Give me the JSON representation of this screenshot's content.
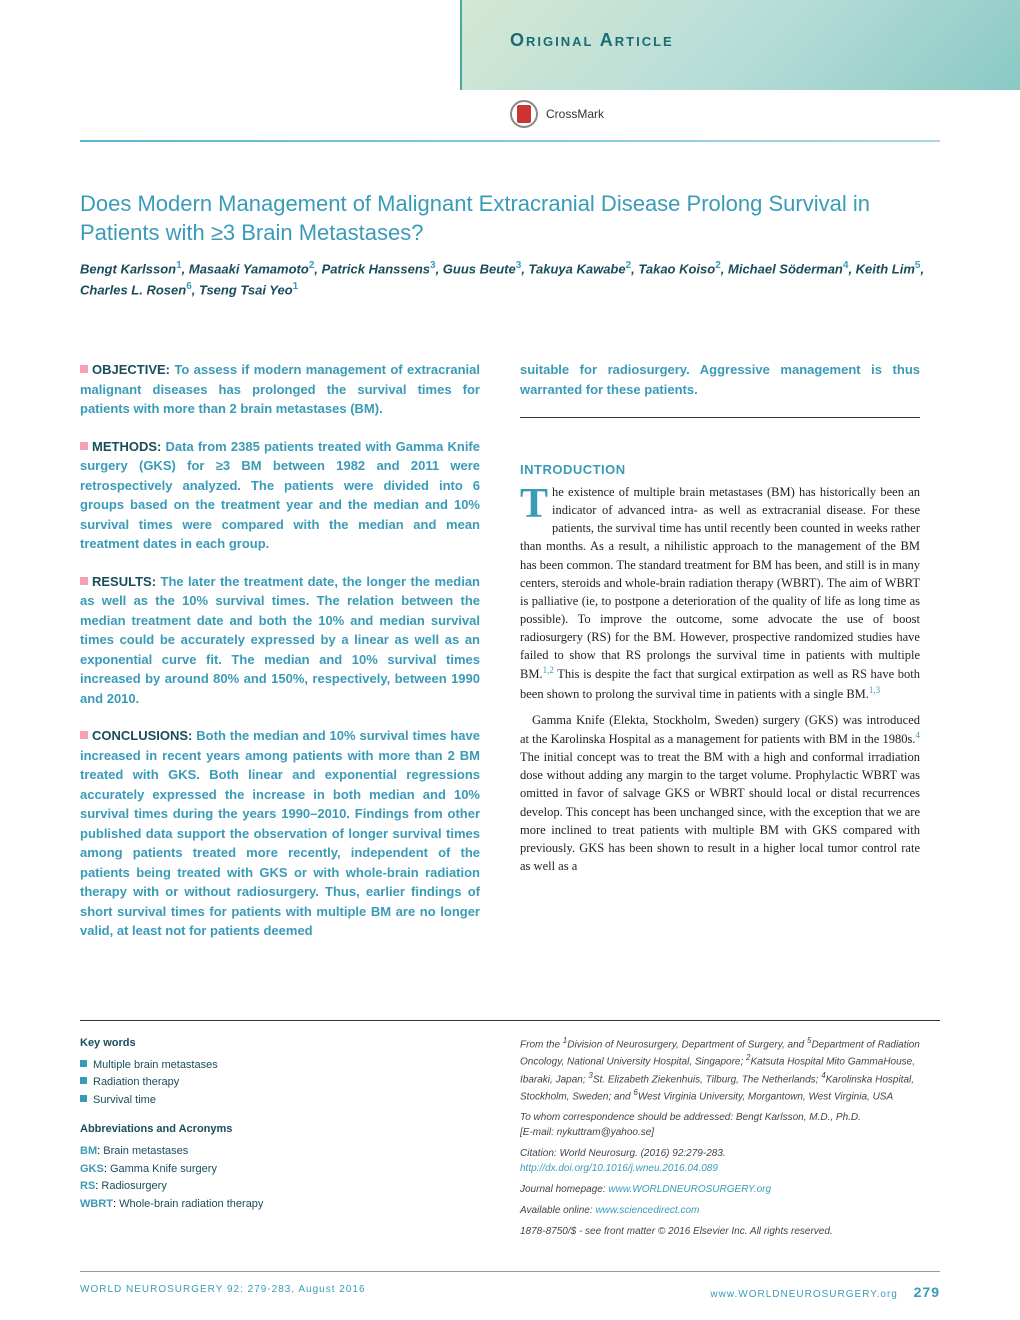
{
  "header": {
    "section_label": "Original Article",
    "crossmark": "CrossMark"
  },
  "title": "Does Modern Management of Malignant Extracranial Disease Prolong Survival in Patients with ≥3 Brain Metastases?",
  "authors_html": "Bengt Karlsson<sup>1</sup>, Masaaki Yamamoto<sup>2</sup>, Patrick Hanssens<sup>3</sup>, Guus Beute<sup>3</sup>, Takuya Kawabe<sup>2</sup>, Takao Koiso<sup>2</sup>, Michael Söderman<sup>4</sup>, Keith Lim<sup>5</sup>, Charles L. Rosen<sup>6</sup>, Tseng Tsai Yeo<sup>1</sup>",
  "abstract": {
    "objective": {
      "label": "OBJECTIVE:",
      "text": "To assess if modern management of extracranial malignant diseases has prolonged the survival times for patients with more than 2 brain metastases (BM)."
    },
    "methods": {
      "label": "METHODS:",
      "text": "Data from 2385 patients treated with Gamma Knife surgery (GKS) for ≥3 BM between 1982 and 2011 were retrospectively analyzed. The patients were divided into 6 groups based on the treatment year and the median and 10% survival times were compared with the median and mean treatment dates in each group."
    },
    "results": {
      "label": "RESULTS:",
      "text": "The later the treatment date, the longer the median as well as the 10% survival times. The relation between the median treatment date and both the 10% and median survival times could be accurately expressed by a linear as well as an exponential curve fit. The median and 10% survival times increased by around 80% and 150%, respectively, between 1990 and 2010."
    },
    "conclusions": {
      "label": "CONCLUSIONS:",
      "text": "Both the median and 10% survival times have increased in recent years among patients with more than 2 BM treated with GKS. Both linear and exponential regressions accurately expressed the increase in both median and 10% survival times during the years 1990–2010. Findings from other published data support the observation of longer survival times among patients treated more recently, independent of the patients being treated with GKS or with whole-brain radiation therapy with or without radiosurgery. Thus, earlier findings of short survival times for patients with multiple BM are no longer valid, at least not for patients deemed"
    },
    "conclusions_cont": "suitable for radiosurgery. Aggressive management is thus warranted for these patients."
  },
  "introduction": {
    "heading": "INTRODUCTION",
    "p1": "he existence of multiple brain metastases (BM) has historically been an indicator of advanced intra- as well as extracranial disease. For these patients, the survival time has until recently been counted in weeks rather than months. As a result, a nihilistic approach to the management of the BM has been common. The standard treatment for BM has been, and still is in many centers, steroids and whole-brain radiation therapy (WBRT). The aim of WBRT is palliative (ie, to postpone a deterioration of the quality of life as long time as possible). To improve the outcome, some advocate the use of boost radiosurgery (RS) for the BM. However, prospective randomized studies have failed to show that RS prolongs the survival time in patients with multiple BM.",
    "p1_refs": "1,2",
    "p1b": " This is despite the fact that surgical extirpation as well as RS have both been shown to prolong the survival time in patients with a single BM.",
    "p1b_refs": "1,3",
    "p2": "Gamma Knife (Elekta, Stockholm, Sweden) surgery (GKS) was introduced at the Karolinska Hospital as a management for patients with BM in the 1980s.",
    "p2_refs": "4",
    "p2b": " The initial concept was to treat the BM with a high and conformal irradiation dose without adding any margin to the target volume. Prophylactic WBRT was omitted in favor of salvage GKS or WBRT should local or distal recurrences develop. This concept has been unchanged since, with the exception that we are more inclined to treat patients with multiple BM with GKS compared with previously. GKS has been shown to result in a higher local tumor control rate as well as a"
  },
  "keywords": {
    "heading": "Key words",
    "items": [
      "Multiple brain metastases",
      "Radiation therapy",
      "Survival time"
    ]
  },
  "abbreviations": {
    "heading": "Abbreviations and Acronyms",
    "items": [
      {
        "k": "BM",
        "v": "Brain metastases"
      },
      {
        "k": "GKS",
        "v": "Gamma Knife surgery"
      },
      {
        "k": "RS",
        "v": "Radiosurgery"
      },
      {
        "k": "WBRT",
        "v": "Whole-brain radiation therapy"
      }
    ]
  },
  "affiliations": "From the <sup>1</sup>Division of Neurosurgery, Department of Surgery, and <sup>5</sup>Department of Radiation Oncology, National University Hospital, Singapore; <sup>2</sup>Katsuta Hospital Mito GammaHouse, Ibaraki, Japan; <sup>3</sup>St. Elizabeth Ziekenhuis, Tilburg, The Netherlands; <sup>4</sup>Karolinska Hospital, Stockholm, Sweden; and <sup>6</sup>West Virginia University, Morgantown, West Virginia, USA",
  "correspondence": "To whom correspondence should be addressed: Bengt Karlsson, M.D., Ph.D.",
  "email": "[E-mail: nykuttram@yahoo.se]",
  "citation": "Citation: World Neurosurg. (2016) 92:279-283.",
  "doi": "http://dx.doi.org/10.1016/j.wneu.2016.04.089",
  "homepage_label": "Journal homepage: ",
  "homepage": "www.WORLDNEUROSURGERY.org",
  "online_label": "Available online: ",
  "online": "www.sciencedirect.com",
  "copyright": "1878-8750/$ - see front matter © 2016 Elsevier Inc. All rights reserved.",
  "footer": {
    "left": "WORLD NEUROSURGERY 92: 279-283, August 2016",
    "right": "www.WORLDNEUROSURGERY.org",
    "page": "279"
  },
  "colors": {
    "accent": "#3a9bb8",
    "dark": "#1a4d5c",
    "pink": "#f5a0b8"
  }
}
